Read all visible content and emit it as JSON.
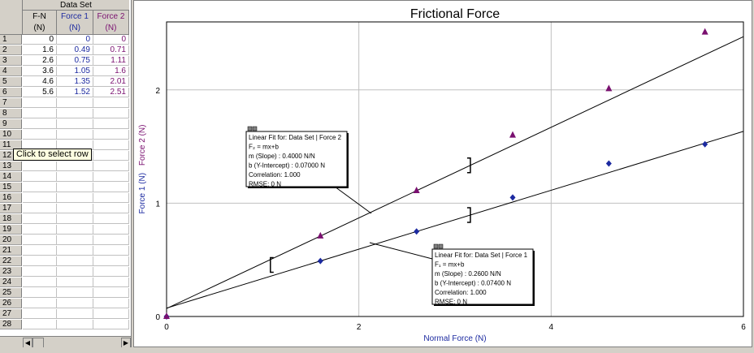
{
  "table": {
    "dataset_title": "Data Set",
    "columns": [
      {
        "name": "F-N",
        "unit": "(N)"
      },
      {
        "name": "Force 1",
        "unit": "(N)"
      },
      {
        "name": "Force 2",
        "unit": "(N)"
      }
    ],
    "rows": [
      {
        "n": "1",
        "fn": "0",
        "f1": "0",
        "f2": "0"
      },
      {
        "n": "2",
        "fn": "1.6",
        "f1": "0.49",
        "f2": "0.71"
      },
      {
        "n": "3",
        "fn": "2.6",
        "f1": "0.75",
        "f2": "1.11"
      },
      {
        "n": "4",
        "fn": "3.6",
        "f1": "1.05",
        "f2": "1.6"
      },
      {
        "n": "5",
        "fn": "4.6",
        "f1": "1.35",
        "f2": "2.01"
      },
      {
        "n": "6",
        "fn": "5.6",
        "f1": "1.52",
        "f2": "2.51"
      },
      {
        "n": "7",
        "fn": "",
        "f1": "",
        "f2": ""
      },
      {
        "n": "8",
        "fn": "",
        "f1": "",
        "f2": ""
      },
      {
        "n": "9",
        "fn": "",
        "f1": "",
        "f2": ""
      },
      {
        "n": "10",
        "fn": "",
        "f1": "",
        "f2": ""
      },
      {
        "n": "11",
        "fn": "",
        "f1": "",
        "f2": ""
      },
      {
        "n": "12",
        "fn": "",
        "f1": "",
        "f2": ""
      },
      {
        "n": "13",
        "fn": "",
        "f1": "",
        "f2": ""
      },
      {
        "n": "14",
        "fn": "",
        "f1": "",
        "f2": ""
      },
      {
        "n": "15",
        "fn": "",
        "f1": "",
        "f2": ""
      },
      {
        "n": "16",
        "fn": "",
        "f1": "",
        "f2": ""
      },
      {
        "n": "17",
        "fn": "",
        "f1": "",
        "f2": ""
      },
      {
        "n": "18",
        "fn": "",
        "f1": "",
        "f2": ""
      },
      {
        "n": "19",
        "fn": "",
        "f1": "",
        "f2": ""
      },
      {
        "n": "20",
        "fn": "",
        "f1": "",
        "f2": ""
      },
      {
        "n": "21",
        "fn": "",
        "f1": "",
        "f2": ""
      },
      {
        "n": "22",
        "fn": "",
        "f1": "",
        "f2": ""
      },
      {
        "n": "23",
        "fn": "",
        "f1": "",
        "f2": ""
      },
      {
        "n": "24",
        "fn": "",
        "f1": "",
        "f2": ""
      },
      {
        "n": "25",
        "fn": "",
        "f1": "",
        "f2": ""
      },
      {
        "n": "26",
        "fn": "",
        "f1": "",
        "f2": ""
      },
      {
        "n": "27",
        "fn": "",
        "f1": "",
        "f2": ""
      },
      {
        "n": "28",
        "fn": "",
        "f1": "",
        "f2": ""
      }
    ],
    "tooltip": "Click to select row"
  },
  "colors": {
    "force1": "#1c2aa0",
    "force2": "#7a1070",
    "fit_line": "#000000",
    "grid": "#c0c0c0"
  },
  "chart_data": {
    "type": "scatter",
    "title": "Frictional Force",
    "xlabel": "Normal Force (N)",
    "ylabel_parts": [
      {
        "text": "Force 1 (N)",
        "color": "#1c2aa0"
      },
      {
        "text": "Force 2 (N)",
        "color": "#7a1070"
      }
    ],
    "xlim": [
      0,
      6
    ],
    "ylim": [
      0,
      2.6
    ],
    "xticks": [
      "0",
      "2",
      "4",
      "6"
    ],
    "yticks": [
      "0",
      "1",
      "2"
    ],
    "grid": true,
    "series": [
      {
        "name": "Force 1",
        "marker": "diamond",
        "color": "#1c2aa0",
        "x": [
          0,
          1.6,
          2.6,
          3.6,
          4.6,
          5.6
        ],
        "y": [
          0,
          0.49,
          0.75,
          1.05,
          1.35,
          1.52
        ]
      },
      {
        "name": "Force 2",
        "marker": "triangle",
        "color": "#7a1070",
        "x": [
          0,
          1.6,
          2.6,
          3.6,
          4.6,
          5.6
        ],
        "y": [
          0,
          0.71,
          1.11,
          1.6,
          2.01,
          2.51
        ]
      }
    ],
    "fits": [
      {
        "series": "Force 2",
        "slope": 0.4,
        "intercept": 0.07,
        "lines": [
          "Linear Fit for: Data Set | Force 2",
          "F₂ = mx+b",
          "m (Slope) : 0.4000 N/N",
          "b (Y-Intercept) : 0.07000 N",
          "Correlation: 1.000",
          "RMSE: 0 N"
        ]
      },
      {
        "series": "Force 1",
        "slope": 0.26,
        "intercept": 0.074,
        "lines": [
          "Linear Fit for: Data Set | Force 1",
          "F₁ = mx+b",
          "m (Slope) : 0.2600 N/N",
          "b (Y-Intercept) : 0.07400 N",
          "Correlation: 1.000",
          "RMSE: 0 N"
        ]
      }
    ]
  }
}
